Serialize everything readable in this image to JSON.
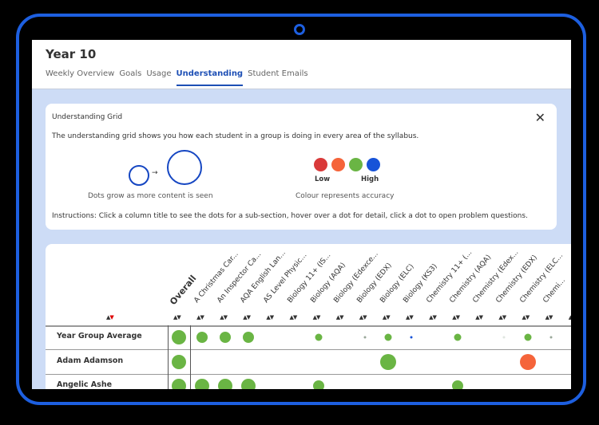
{
  "header": {
    "title": "Year 10",
    "tabs": [
      {
        "label": "Weekly Overview",
        "active": false
      },
      {
        "label": "Goals",
        "active": false
      },
      {
        "label": "Usage",
        "active": false
      },
      {
        "label": "Understanding",
        "active": true
      },
      {
        "label": "Student Emails",
        "active": false
      }
    ]
  },
  "info": {
    "title": "Understanding Grid",
    "description": "The understanding grid shows you how each student in a group is doing in every area of the syllabus.",
    "size_caption": "Dots grow as more content is seen",
    "color_caption": "Colour represents accuracy",
    "low_label": "Low",
    "high_label": "High",
    "legend_colors": [
      "#d93a3a",
      "#f5643a",
      "#6ab544",
      "#1753d8"
    ],
    "instructions": "Instructions: Click a column title to see the dots for a sub-section, hover over a dot for detail, click a dot to open problem questions.",
    "close_icon": "close-icon"
  },
  "grid": {
    "columns": [
      "Overall",
      "A Christmas Car...",
      "An Inspector Ca...",
      "AQA English Lan...",
      "AS Level Physic...",
      "Biology 11+ (IS...",
      "Biology (AQA)",
      "Biology (Edexce...",
      "Biology (EDX)",
      "Biology (ELC)",
      "Biology (KS3)",
      "Chemistry 11+ (...",
      "Chemistry (AQA)",
      "Chemistry (Edex...",
      "Chemistry (EDX)",
      "Chemistry (ELC...",
      "Chemi..."
    ],
    "sort_icon": "sort-up-down-icon",
    "colors": {
      "green": "#6ab544",
      "red": "#f5643a",
      "blue": "#1753d8",
      "grey": "#9aa89a",
      "faint": "#dfe6df"
    },
    "rows": [
      {
        "name": "Year Group Average",
        "dots": [
          {
            "col": 0,
            "size": "large",
            "color": "green"
          },
          {
            "col": 1,
            "size": "medium",
            "color": "green"
          },
          {
            "col": 2,
            "size": "medium",
            "color": "green"
          },
          {
            "col": 3,
            "size": "medium",
            "color": "green"
          },
          {
            "col": 6,
            "size": "small",
            "color": "green"
          },
          {
            "col": 8,
            "size": "tiny",
            "color": "grey"
          },
          {
            "col": 9,
            "size": "small",
            "color": "green"
          },
          {
            "col": 10,
            "size": "tiny",
            "color": "blue"
          },
          {
            "col": 12,
            "size": "small",
            "color": "green"
          },
          {
            "col": 14,
            "size": "tiny",
            "color": "faint"
          },
          {
            "col": 15,
            "size": "small",
            "color": "green"
          },
          {
            "col": 16,
            "size": "tiny",
            "color": "grey"
          }
        ]
      },
      {
        "name": "Adam Adamson",
        "dots": [
          {
            "col": 0,
            "size": "large",
            "color": "green"
          },
          {
            "col": 9,
            "size": "xlarge",
            "color": "green"
          },
          {
            "col": 15,
            "size": "xlarge",
            "color": "red"
          }
        ]
      },
      {
        "name": "Angelic Ashe",
        "dots": [
          {
            "col": 0,
            "size": "large",
            "color": "green"
          },
          {
            "col": 1,
            "size": "large",
            "color": "green"
          },
          {
            "col": 2,
            "size": "large",
            "color": "green"
          },
          {
            "col": 3,
            "size": "large",
            "color": "green"
          },
          {
            "col": 6,
            "size": "medium",
            "color": "green"
          },
          {
            "col": 12,
            "size": "medium",
            "color": "green"
          }
        ]
      }
    ]
  }
}
